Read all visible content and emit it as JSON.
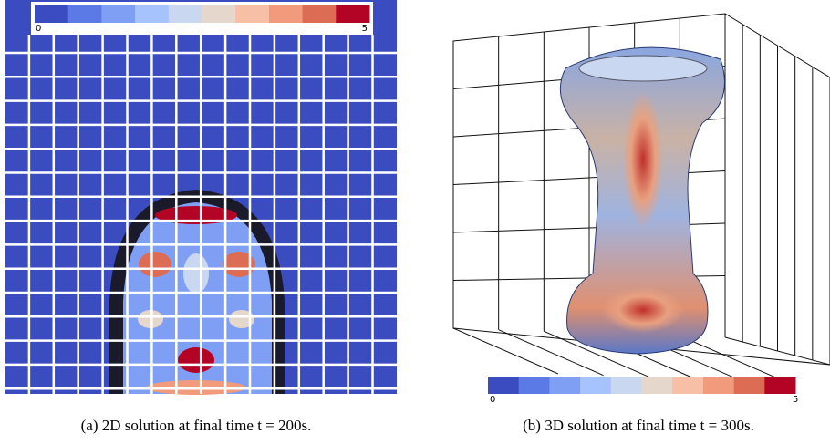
{
  "panels": [
    {
      "colorbar": {
        "min_label": "0",
        "max_label": "5"
      },
      "caption": "(a) 2D solution at final time t = 200s."
    },
    {
      "colorbar": {
        "min_label": "0",
        "max_label": "5"
      },
      "caption": "(b) 3D solution at final time t = 300s."
    }
  ],
  "colormap": [
    "#3b4cc0",
    "#5b7ae5",
    "#7f9ff4",
    "#a6c3fd",
    "#c9d7f0",
    "#e6d7cc",
    "#f6bfa6",
    "#f29b7c",
    "#dc6d54",
    "#b40426"
  ]
}
